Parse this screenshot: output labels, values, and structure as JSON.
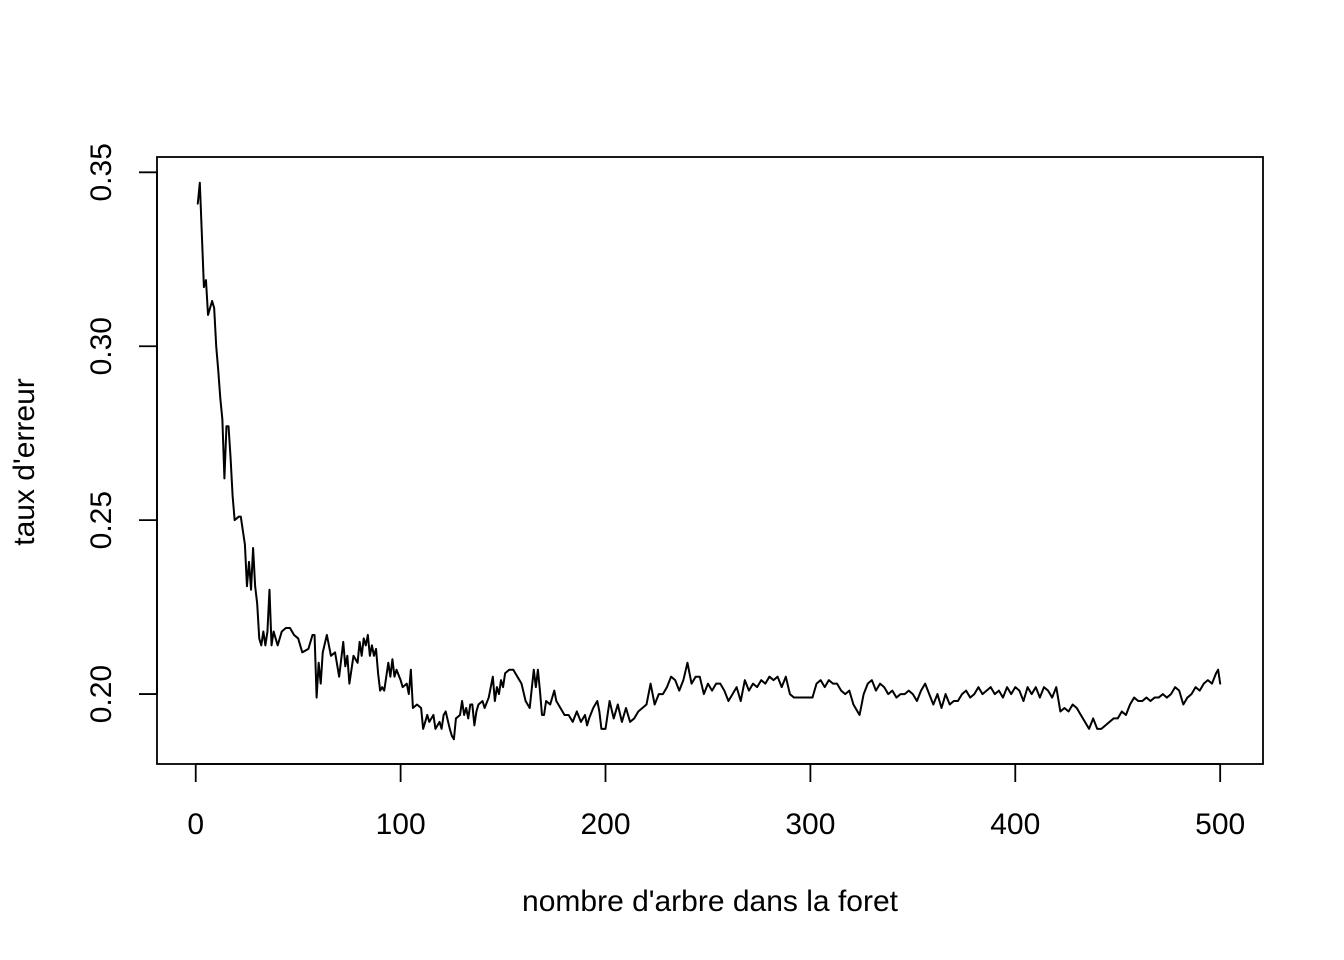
{
  "chart_data": {
    "type": "line",
    "title": "",
    "xlabel": "nombre d'arbre dans la foret",
    "ylabel": "taux d'erreur",
    "xlim": [
      -18.9,
      520.9
    ],
    "ylim": [
      0.1799,
      0.3544
    ],
    "xticks": [
      0,
      100,
      200,
      300,
      400,
      500
    ],
    "xtick_labels": [
      "0",
      "100",
      "200",
      "300",
      "400",
      "500"
    ],
    "yticks": [
      0.2,
      0.25,
      0.3,
      0.35
    ],
    "ytick_labels": [
      "0.20",
      "0.25",
      "0.30",
      "0.35"
    ],
    "grid": false,
    "legend": "none",
    "line_color": "#000000",
    "series": [
      {
        "points": [
          [
            1,
            0.341
          ],
          [
            2,
            0.347
          ],
          [
            4,
            0.317
          ],
          [
            5,
            0.319
          ],
          [
            6,
            0.309
          ],
          [
            8,
            0.313
          ],
          [
            9,
            0.311
          ],
          [
            10,
            0.3
          ],
          [
            11,
            0.293
          ],
          [
            12,
            0.285
          ],
          [
            13,
            0.279
          ],
          [
            14,
            0.262
          ],
          [
            15,
            0.277
          ],
          [
            16,
            0.277
          ],
          [
            17,
            0.268
          ],
          [
            18,
            0.257
          ],
          [
            19,
            0.25
          ],
          [
            21,
            0.251
          ],
          [
            22,
            0.251
          ],
          [
            24,
            0.243
          ],
          [
            25,
            0.231
          ],
          [
            26,
            0.238
          ],
          [
            27,
            0.23
          ],
          [
            28,
            0.242
          ],
          [
            29,
            0.231
          ],
          [
            30,
            0.226
          ],
          [
            31,
            0.216
          ],
          [
            32,
            0.214
          ],
          [
            33,
            0.218
          ],
          [
            34,
            0.214
          ],
          [
            35,
            0.218
          ],
          [
            36,
            0.23
          ],
          [
            37,
            0.214
          ],
          [
            38,
            0.218
          ],
          [
            40,
            0.214
          ],
          [
            42,
            0.218
          ],
          [
            44,
            0.219
          ],
          [
            46,
            0.219
          ],
          [
            48,
            0.217
          ],
          [
            50,
            0.216
          ],
          [
            52,
            0.212
          ],
          [
            55,
            0.213
          ],
          [
            57,
            0.217
          ],
          [
            58,
            0.217
          ],
          [
            59,
            0.199
          ],
          [
            60,
            0.209
          ],
          [
            61,
            0.203
          ],
          [
            62,
            0.212
          ],
          [
            64,
            0.217
          ],
          [
            66,
            0.211
          ],
          [
            68,
            0.212
          ],
          [
            70,
            0.205
          ],
          [
            72,
            0.215
          ],
          [
            73,
            0.208
          ],
          [
            74,
            0.211
          ],
          [
            75,
            0.203
          ],
          [
            77,
            0.211
          ],
          [
            79,
            0.209
          ],
          [
            80,
            0.215
          ],
          [
            81,
            0.211
          ],
          [
            82,
            0.216
          ],
          [
            83,
            0.214
          ],
          [
            84,
            0.217
          ],
          [
            85,
            0.211
          ],
          [
            86,
            0.214
          ],
          [
            87,
            0.211
          ],
          [
            88,
            0.213
          ],
          [
            89,
            0.206
          ],
          [
            90,
            0.201
          ],
          [
            91,
            0.202
          ],
          [
            92,
            0.201
          ],
          [
            94,
            0.209
          ],
          [
            95,
            0.205
          ],
          [
            96,
            0.21
          ],
          [
            97,
            0.205
          ],
          [
            98,
            0.207
          ],
          [
            100,
            0.204
          ],
          [
            101,
            0.202
          ],
          [
            103,
            0.203
          ],
          [
            104,
            0.2
          ],
          [
            105,
            0.207
          ],
          [
            106,
            0.196
          ],
          [
            108,
            0.197
          ],
          [
            110,
            0.196
          ],
          [
            111,
            0.19
          ],
          [
            113,
            0.194
          ],
          [
            114,
            0.192
          ],
          [
            116,
            0.194
          ],
          [
            117,
            0.19
          ],
          [
            119,
            0.192
          ],
          [
            120,
            0.19
          ],
          [
            121,
            0.194
          ],
          [
            122,
            0.195
          ],
          [
            124,
            0.19
          ],
          [
            125,
            0.188
          ],
          [
            126,
            0.187
          ],
          [
            127,
            0.193
          ],
          [
            129,
            0.194
          ],
          [
            130,
            0.198
          ],
          [
            131,
            0.194
          ],
          [
            132,
            0.196
          ],
          [
            133,
            0.193
          ],
          [
            134,
            0.197
          ],
          [
            135,
            0.197
          ],
          [
            136,
            0.191
          ],
          [
            137,
            0.195
          ],
          [
            138,
            0.197
          ],
          [
            140,
            0.198
          ],
          [
            141,
            0.196
          ],
          [
            143,
            0.199
          ],
          [
            145,
            0.205
          ],
          [
            146,
            0.198
          ],
          [
            147,
            0.202
          ],
          [
            148,
            0.2
          ],
          [
            149,
            0.204
          ],
          [
            150,
            0.202
          ],
          [
            151,
            0.206
          ],
          [
            153,
            0.207
          ],
          [
            155,
            0.207
          ],
          [
            157,
            0.205
          ],
          [
            159,
            0.203
          ],
          [
            161,
            0.198
          ],
          [
            163,
            0.196
          ],
          [
            165,
            0.207
          ],
          [
            166,
            0.202
          ],
          [
            167,
            0.207
          ],
          [
            168,
            0.201
          ],
          [
            169,
            0.194
          ],
          [
            170,
            0.194
          ],
          [
            171,
            0.198
          ],
          [
            173,
            0.197
          ],
          [
            175,
            0.201
          ],
          [
            176,
            0.198
          ],
          [
            178,
            0.196
          ],
          [
            180,
            0.194
          ],
          [
            182,
            0.194
          ],
          [
            184,
            0.192
          ],
          [
            186,
            0.195
          ],
          [
            188,
            0.192
          ],
          [
            190,
            0.194
          ],
          [
            191,
            0.191
          ],
          [
            192,
            0.193
          ],
          [
            194,
            0.196
          ],
          [
            196,
            0.198
          ],
          [
            197,
            0.195
          ],
          [
            198,
            0.19
          ],
          [
            200,
            0.19
          ],
          [
            202,
            0.198
          ],
          [
            204,
            0.193
          ],
          [
            206,
            0.197
          ],
          [
            208,
            0.192
          ],
          [
            210,
            0.196
          ],
          [
            212,
            0.192
          ],
          [
            214,
            0.193
          ],
          [
            216,
            0.195
          ],
          [
            218,
            0.196
          ],
          [
            220,
            0.197
          ],
          [
            222,
            0.203
          ],
          [
            224,
            0.197
          ],
          [
            226,
            0.2
          ],
          [
            228,
            0.2
          ],
          [
            230,
            0.202
          ],
          [
            232,
            0.205
          ],
          [
            234,
            0.204
          ],
          [
            236,
            0.201
          ],
          [
            238,
            0.204
          ],
          [
            240,
            0.209
          ],
          [
            242,
            0.203
          ],
          [
            244,
            0.205
          ],
          [
            246,
            0.205
          ],
          [
            248,
            0.2
          ],
          [
            250,
            0.203
          ],
          [
            252,
            0.201
          ],
          [
            254,
            0.203
          ],
          [
            256,
            0.203
          ],
          [
            258,
            0.201
          ],
          [
            260,
            0.198
          ],
          [
            262,
            0.2
          ],
          [
            264,
            0.202
          ],
          [
            266,
            0.198
          ],
          [
            268,
            0.204
          ],
          [
            270,
            0.201
          ],
          [
            272,
            0.203
          ],
          [
            274,
            0.202
          ],
          [
            276,
            0.204
          ],
          [
            278,
            0.203
          ],
          [
            280,
            0.205
          ],
          [
            282,
            0.204
          ],
          [
            284,
            0.205
          ],
          [
            286,
            0.202
          ],
          [
            288,
            0.205
          ],
          [
            290,
            0.2
          ],
          [
            292,
            0.199
          ],
          [
            295,
            0.199
          ],
          [
            298,
            0.199
          ],
          [
            301,
            0.199
          ],
          [
            303,
            0.203
          ],
          [
            305,
            0.204
          ],
          [
            307,
            0.202
          ],
          [
            309,
            0.204
          ],
          [
            311,
            0.203
          ],
          [
            313,
            0.203
          ],
          [
            315,
            0.201
          ],
          [
            317,
            0.2
          ],
          [
            319,
            0.201
          ],
          [
            321,
            0.197
          ],
          [
            322,
            0.196
          ],
          [
            324,
            0.194
          ],
          [
            326,
            0.2
          ],
          [
            328,
            0.203
          ],
          [
            330,
            0.204
          ],
          [
            332,
            0.201
          ],
          [
            334,
            0.203
          ],
          [
            336,
            0.202
          ],
          [
            338,
            0.2
          ],
          [
            340,
            0.201
          ],
          [
            342,
            0.199
          ],
          [
            344,
            0.2
          ],
          [
            346,
            0.2
          ],
          [
            348,
            0.201
          ],
          [
            350,
            0.2
          ],
          [
            352,
            0.198
          ],
          [
            354,
            0.201
          ],
          [
            356,
            0.203
          ],
          [
            358,
            0.2
          ],
          [
            360,
            0.197
          ],
          [
            362,
            0.2
          ],
          [
            364,
            0.196
          ],
          [
            366,
            0.2
          ],
          [
            368,
            0.197
          ],
          [
            370,
            0.198
          ],
          [
            372,
            0.198
          ],
          [
            374,
            0.2
          ],
          [
            376,
            0.201
          ],
          [
            378,
            0.199
          ],
          [
            380,
            0.2
          ],
          [
            382,
            0.202
          ],
          [
            384,
            0.2
          ],
          [
            386,
            0.201
          ],
          [
            388,
            0.202
          ],
          [
            390,
            0.2
          ],
          [
            392,
            0.201
          ],
          [
            394,
            0.199
          ],
          [
            396,
            0.202
          ],
          [
            398,
            0.2
          ],
          [
            400,
            0.202
          ],
          [
            402,
            0.201
          ],
          [
            404,
            0.198
          ],
          [
            406,
            0.202
          ],
          [
            408,
            0.2
          ],
          [
            410,
            0.202
          ],
          [
            412,
            0.199
          ],
          [
            414,
            0.202
          ],
          [
            416,
            0.201
          ],
          [
            418,
            0.199
          ],
          [
            420,
            0.202
          ],
          [
            422,
            0.195
          ],
          [
            424,
            0.196
          ],
          [
            426,
            0.195
          ],
          [
            428,
            0.197
          ],
          [
            430,
            0.196
          ],
          [
            432,
            0.194
          ],
          [
            434,
            0.192
          ],
          [
            436,
            0.19
          ],
          [
            438,
            0.193
          ],
          [
            440,
            0.19
          ],
          [
            442,
            0.19
          ],
          [
            444,
            0.191
          ],
          [
            446,
            0.192
          ],
          [
            448,
            0.193
          ],
          [
            450,
            0.193
          ],
          [
            452,
            0.195
          ],
          [
            454,
            0.194
          ],
          [
            456,
            0.197
          ],
          [
            458,
            0.199
          ],
          [
            460,
            0.198
          ],
          [
            462,
            0.198
          ],
          [
            464,
            0.199
          ],
          [
            466,
            0.198
          ],
          [
            468,
            0.199
          ],
          [
            470,
            0.199
          ],
          [
            472,
            0.2
          ],
          [
            474,
            0.199
          ],
          [
            476,
            0.2
          ],
          [
            478,
            0.202
          ],
          [
            480,
            0.201
          ],
          [
            482,
            0.197
          ],
          [
            484,
            0.199
          ],
          [
            486,
            0.2
          ],
          [
            488,
            0.202
          ],
          [
            490,
            0.201
          ],
          [
            492,
            0.203
          ],
          [
            494,
            0.204
          ],
          [
            496,
            0.203
          ],
          [
            498,
            0.206
          ],
          [
            499,
            0.207
          ],
          [
            500,
            0.203
          ]
        ]
      }
    ]
  }
}
